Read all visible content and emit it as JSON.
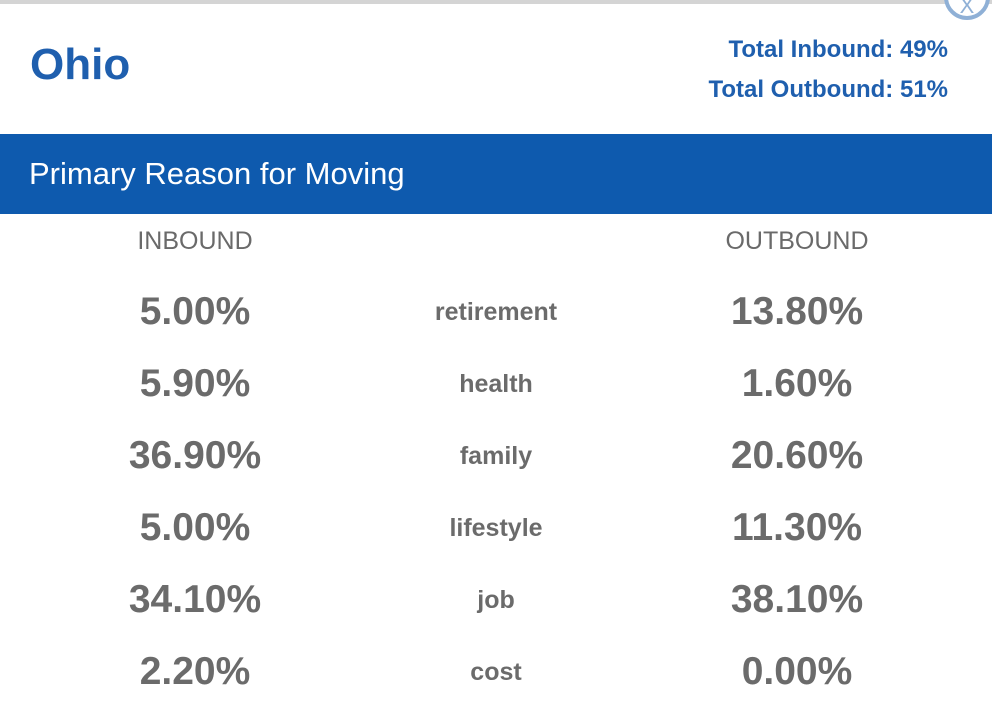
{
  "close_label": "X",
  "title": "Ohio",
  "totals": {
    "inbound": "Total Inbound: 49%",
    "outbound": "Total Outbound: 51%"
  },
  "section_title": "Primary Reason for Moving",
  "columns": {
    "inbound": "INBOUND",
    "outbound": "OUTBOUND"
  },
  "rows": [
    {
      "inbound": "5.00%",
      "reason": "retirement",
      "outbound": "13.80%"
    },
    {
      "inbound": "5.90%",
      "reason": "health",
      "outbound": "1.60%"
    },
    {
      "inbound": "36.90%",
      "reason": "family",
      "outbound": "20.60%"
    },
    {
      "inbound": "5.00%",
      "reason": "lifestyle",
      "outbound": "11.30%"
    },
    {
      "inbound": "34.10%",
      "reason": "job",
      "outbound": "38.10%"
    },
    {
      "inbound": "2.20%",
      "reason": "cost",
      "outbound": "0.00%"
    }
  ],
  "colors": {
    "brand_blue": "#1f5fae",
    "header_bar": "#0e5aae",
    "text_gray": "#6b6b6b"
  }
}
